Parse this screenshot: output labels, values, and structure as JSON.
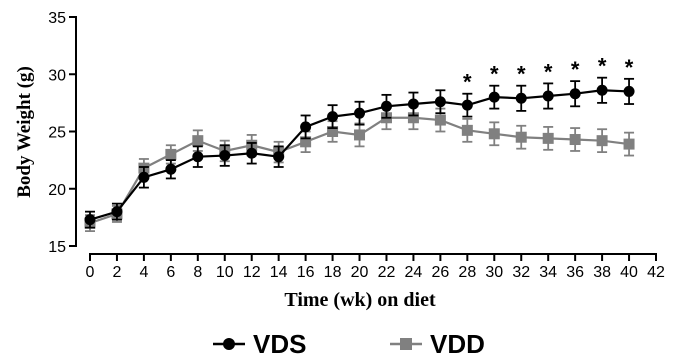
{
  "chart_data": {
    "type": "line",
    "xlabel": "Time (wk) on diet",
    "ylabel": "Body Weight (g)",
    "xlim": [
      0,
      42
    ],
    "ylim": [
      15,
      35
    ],
    "xticks": [
      0,
      2,
      4,
      6,
      8,
      10,
      12,
      14,
      16,
      18,
      20,
      22,
      24,
      26,
      28,
      30,
      32,
      34,
      36,
      38,
      40,
      42
    ],
    "yticks": [
      15,
      20,
      25,
      30,
      35
    ],
    "x": [
      0,
      2,
      4,
      6,
      8,
      10,
      12,
      14,
      16,
      18,
      20,
      22,
      24,
      26,
      28,
      30,
      32,
      34,
      36,
      38,
      40
    ],
    "legend_position": "bottom",
    "grid": false,
    "series": [
      {
        "name": "VDS",
        "color": "#000000",
        "marker": "circle",
        "values": [
          17.3,
          18.0,
          21.0,
          21.7,
          22.8,
          22.9,
          23.1,
          22.8,
          25.4,
          26.3,
          26.6,
          27.2,
          27.4,
          27.6,
          27.3,
          28.0,
          27.9,
          28.1,
          28.3,
          28.6,
          28.5
        ],
        "error": [
          0.7,
          0.7,
          0.9,
          0.8,
          0.9,
          0.9,
          0.9,
          0.9,
          1.0,
          1.0,
          1.0,
          1.0,
          1.0,
          1.0,
          1.0,
          1.0,
          1.1,
          1.1,
          1.1,
          1.1,
          1.1
        ]
      },
      {
        "name": "VDD",
        "color": "#808080",
        "marker": "square",
        "values": [
          17.0,
          17.8,
          21.8,
          23.0,
          24.2,
          23.3,
          23.8,
          23.2,
          24.1,
          25.0,
          24.7,
          26.2,
          26.2,
          26.0,
          25.1,
          24.8,
          24.5,
          24.4,
          24.3,
          24.2,
          23.9
        ],
        "error": [
          0.7,
          0.7,
          0.8,
          0.8,
          0.9,
          0.9,
          0.9,
          0.9,
          0.9,
          0.9,
          1.0,
          1.0,
          1.0,
          1.0,
          1.0,
          1.0,
          1.0,
          1.0,
          1.0,
          1.0,
          1.0
        ]
      }
    ],
    "annotations": [
      {
        "x": 28,
        "text": "*"
      },
      {
        "x": 30,
        "text": "*"
      },
      {
        "x": 32,
        "text": "*"
      },
      {
        "x": 34,
        "text": "*"
      },
      {
        "x": 36,
        "text": "*"
      },
      {
        "x": 38,
        "text": "*"
      },
      {
        "x": 40,
        "text": "*"
      }
    ]
  }
}
